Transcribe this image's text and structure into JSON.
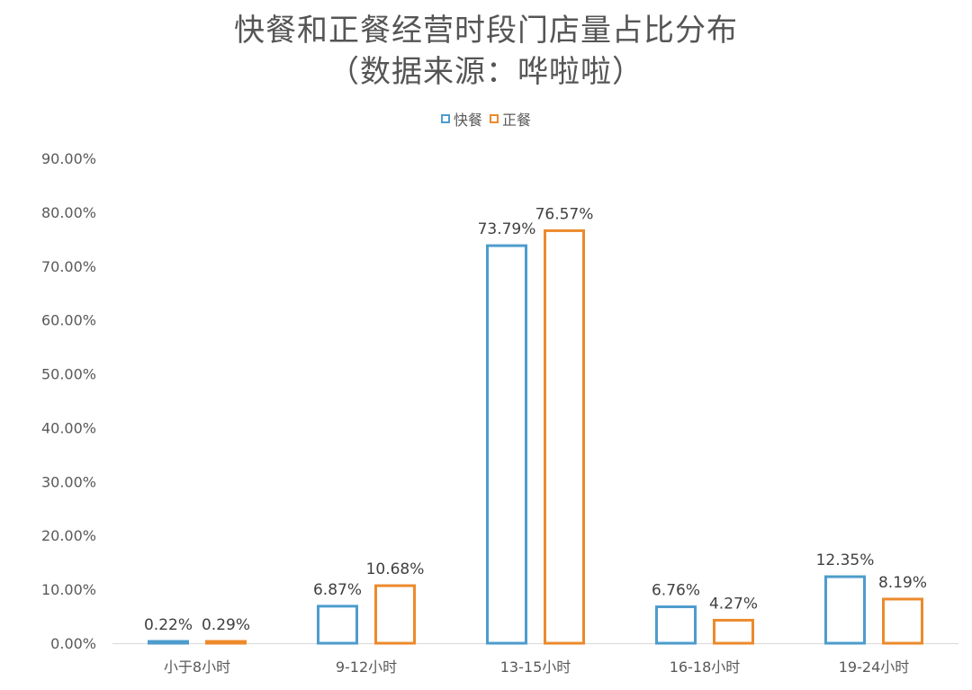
{
  "title_line1": "快餐和正餐经营时段门店量占比分布",
  "title_line2": "（数据来源：哗啦啦）",
  "colors": {
    "series1": "#4e9ccd",
    "series2": "#ec8a2c",
    "axis_text": "#595959",
    "label_text": "#404040"
  },
  "chart_data": {
    "type": "bar",
    "categories": [
      "小于8小时",
      "9-12小时",
      "13-15小时",
      "16-18小时",
      "19-24小时"
    ],
    "series": [
      {
        "name": "快餐",
        "values": [
          0.22,
          6.87,
          73.79,
          6.76,
          12.35
        ],
        "labels": [
          "0.22%",
          "6.87%",
          "73.79%",
          "6.76%",
          "12.35%"
        ]
      },
      {
        "name": "正餐",
        "values": [
          0.29,
          10.68,
          76.57,
          4.27,
          8.19
        ],
        "labels": [
          "0.29%",
          "10.68%",
          "76.57%",
          "4.27%",
          "8.19%"
        ]
      }
    ],
    "ylim": [
      0,
      90
    ],
    "yticks": [
      "0.00%",
      "10.00%",
      "20.00%",
      "30.00%",
      "40.00%",
      "50.00%",
      "60.00%",
      "70.00%",
      "80.00%",
      "90.00%"
    ],
    "legend_position": "top-center",
    "grid": false
  }
}
